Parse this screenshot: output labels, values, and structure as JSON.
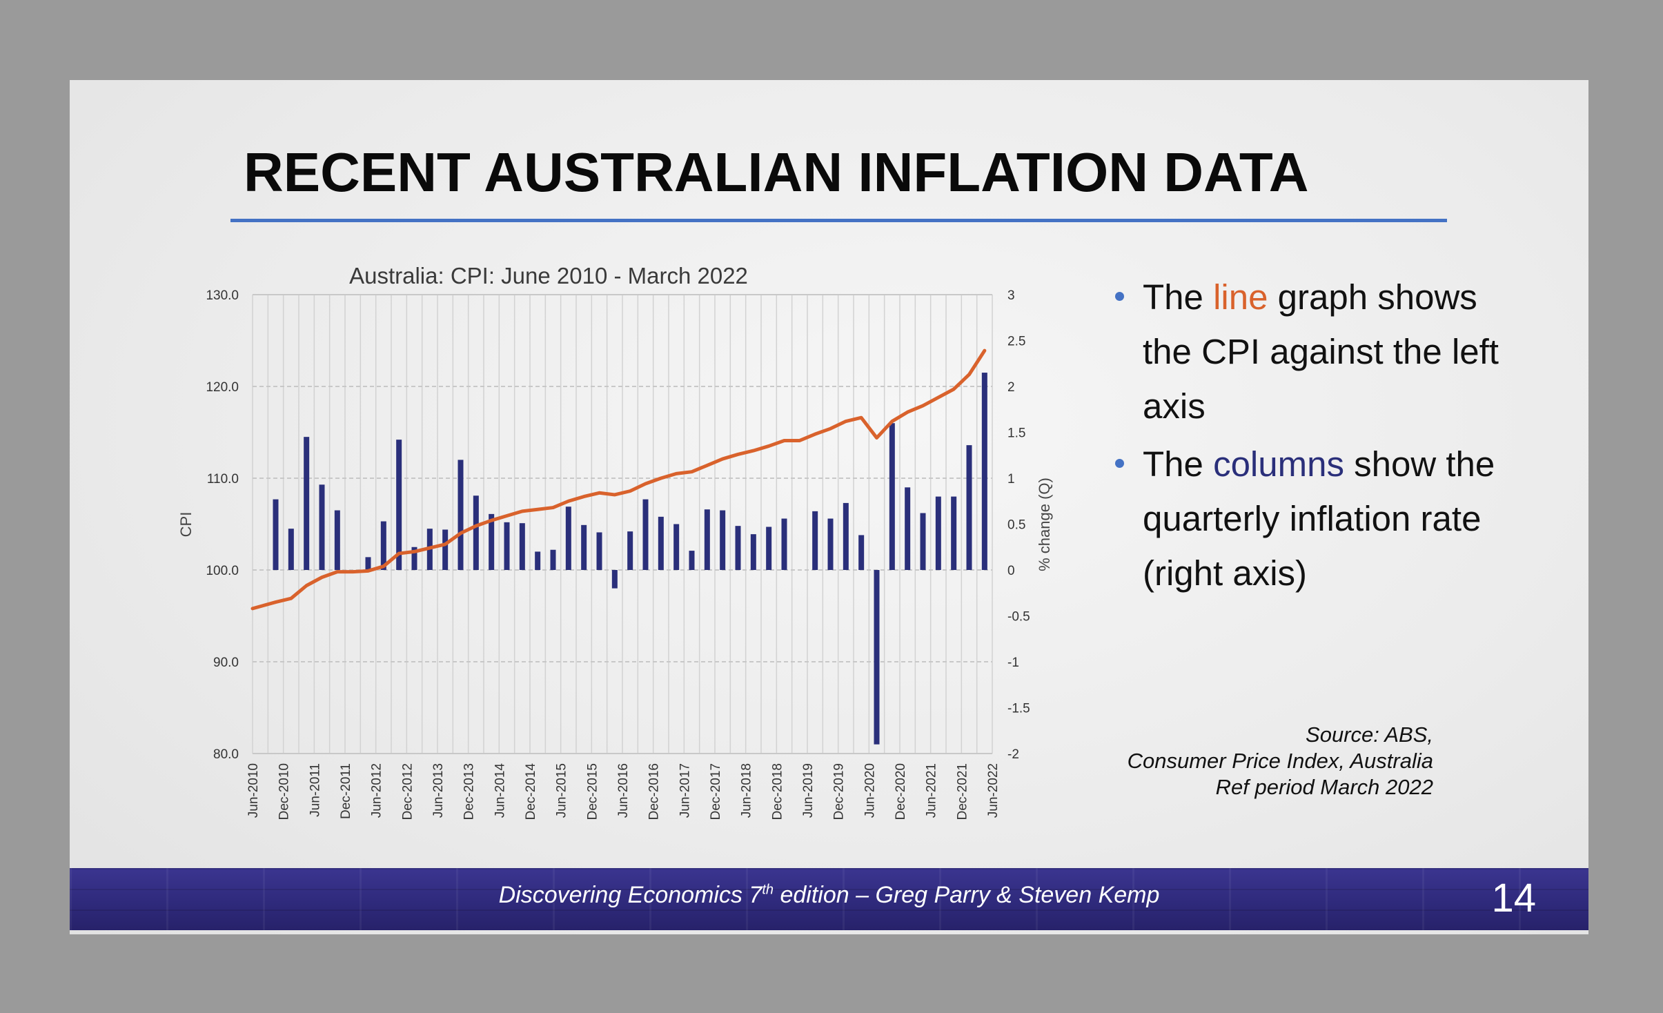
{
  "slide": {
    "title": "RECENT AUSTRALIAN INFLATION DATA",
    "bullets": [
      {
        "before": "The ",
        "highlight": "line",
        "after": " graph shows the CPI against the left axis"
      },
      {
        "before": "The ",
        "highlight": "columns",
        "after": " show the quarterly inflation rate (right axis)"
      }
    ],
    "source_lines": [
      "Source: ABS,",
      "Consumer Price Index, Australia",
      "Ref period March 2022"
    ],
    "footer": {
      "before": "Discovering Economics 7",
      "sup": "th",
      "after": " edition – Greg Parry & Steven Kemp"
    },
    "page_number": "14"
  },
  "colors": {
    "accent_rule": "#4472c4",
    "cpi_line": "#d9622c",
    "columns": "#2a2f7a",
    "footer_bg": "#2f2a7c"
  },
  "chart_data": {
    "type": "bar+line",
    "title": "Australia: CPI: June 2010 - March 2022",
    "ylabel": "CPI",
    "y2label": "% change (Q)",
    "ylim": [
      80,
      130
    ],
    "y_ticks": [
      "80.0",
      "90.0",
      "100.0",
      "110.0",
      "120.0",
      "130.0"
    ],
    "y2lim": [
      -2,
      3
    ],
    "y2_ticks": [
      "-2",
      "-1.5",
      "-1",
      "-0.5",
      "0",
      "0.5",
      "1",
      "1.5",
      "2",
      "2.5",
      "3"
    ],
    "x_tick_labels": [
      "Jun-2010",
      "Dec-2010",
      "Jun-2011",
      "Dec-2011",
      "Jun-2012",
      "Dec-2012",
      "Jun-2013",
      "Dec-2013",
      "Jun-2014",
      "Dec-2014",
      "Jun-2015",
      "Dec-2015",
      "Jun-2016",
      "Dec-2016",
      "Jun-2017",
      "Dec-2017",
      "Jun-2018",
      "Dec-2018",
      "Jun-2019",
      "Dec-2019",
      "Jun-2020",
      "Dec-2020",
      "Jun-2021",
      "Dec-2021",
      "Jun-2022"
    ],
    "x_start": "Jun-2010",
    "quarters": [
      "Jun-2010",
      "Sep-2010",
      "Dec-2010",
      "Mar-2011",
      "Jun-2011",
      "Sep-2011",
      "Dec-2011",
      "Mar-2012",
      "Jun-2012",
      "Sep-2012",
      "Dec-2012",
      "Mar-2013",
      "Jun-2013",
      "Sep-2013",
      "Dec-2013",
      "Mar-2014",
      "Jun-2014",
      "Sep-2014",
      "Dec-2014",
      "Mar-2015",
      "Jun-2015",
      "Sep-2015",
      "Dec-2015",
      "Mar-2016",
      "Jun-2016",
      "Sep-2016",
      "Dec-2016",
      "Mar-2017",
      "Jun-2017",
      "Sep-2017",
      "Dec-2017",
      "Mar-2018",
      "Jun-2018",
      "Sep-2018",
      "Dec-2018",
      "Mar-2019",
      "Jun-2019",
      "Sep-2019",
      "Dec-2019",
      "Mar-2020",
      "Jun-2020",
      "Sep-2020",
      "Dec-2020",
      "Mar-2021",
      "Jun-2021",
      "Sep-2021",
      "Dec-2021",
      "Mar-2022"
    ],
    "series": [
      {
        "name": "CPI",
        "axis": "left",
        "kind": "line",
        "values": [
          95.8,
          96.5,
          96.9,
          98.3,
          99.2,
          99.8,
          99.8,
          99.9,
          100.4,
          101.8,
          102.0,
          102.4,
          102.8,
          104.0,
          104.8,
          105.4,
          105.9,
          106.4,
          106.6,
          106.8,
          107.5,
          108.0,
          108.4,
          108.2,
          108.6,
          109.4,
          110.0,
          110.5,
          110.7,
          111.4,
          112.1,
          112.6,
          113.0,
          113.5,
          114.1,
          114.1,
          114.8,
          115.4,
          116.2,
          116.6,
          114.4,
          116.2,
          117.2,
          117.9,
          118.8,
          119.7,
          121.3,
          123.9
        ]
      },
      {
        "name": "% change (Q)",
        "axis": "right",
        "kind": "bar",
        "values": [
          null,
          0.77,
          0.45,
          1.45,
          0.93,
          0.65,
          null,
          0.14,
          0.53,
          1.42,
          0.25,
          0.45,
          0.44,
          1.2,
          0.81,
          0.61,
          0.52,
          0.51,
          0.2,
          0.22,
          0.69,
          0.49,
          0.41,
          -0.2,
          0.42,
          0.77,
          0.58,
          0.5,
          0.21,
          0.66,
          0.65,
          0.48,
          0.39,
          0.47,
          0.56,
          null,
          0.64,
          0.56,
          0.73,
          0.38,
          -1.9,
          1.6,
          0.9,
          0.62,
          0.8,
          0.8,
          1.36,
          2.15
        ]
      }
    ],
    "grid": true,
    "legend": "none"
  }
}
